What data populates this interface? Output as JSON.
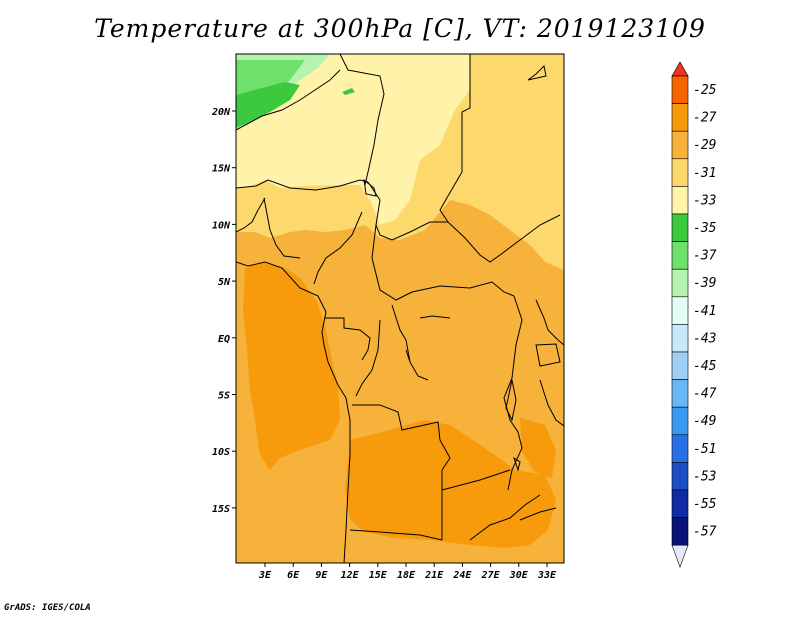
{
  "title": "Temperature at 300hPa [C], VT: 2019123109",
  "credit": "GrADS: IGES/COLA",
  "map": {
    "lat_labels": [
      "20N",
      "15N",
      "10N",
      "5N",
      "EQ",
      "5S",
      "10S",
      "15S"
    ],
    "lon_labels": [
      "3E",
      "6E",
      "9E",
      "12E",
      "15E",
      "18E",
      "21E",
      "24E",
      "27E",
      "30E",
      "33E"
    ]
  },
  "colorbar": {
    "labels": [
      "-25",
      "-27",
      "-29",
      "-31",
      "-33",
      "-35",
      "-37",
      "-39",
      "-41",
      "-43",
      "-45",
      "-47",
      "-49",
      "-51",
      "-53",
      "-55",
      "-57"
    ],
    "colors": {
      "top_triangle": "#f0321e",
      "boxes": [
        "#f56400",
        "#f79b0c",
        "#f6b23b",
        "#fdd96d",
        "#fff3a9",
        "#3cc93e",
        "#6fe06c",
        "#b6f3b0",
        "#e3fdf7",
        "#c9e9fb",
        "#9ecff7",
        "#6ab7f5",
        "#3a9af2",
        "#2a70e5",
        "#1d4fc4",
        "#0e2ba4"
      ],
      "bottom_triangle": "#e6e6fa",
      "bottom_box": "#09147a"
    }
  },
  "field_colors": {
    "warm": "#f79b0c",
    "mid": "#f6b23b",
    "cool": "#fdd96d",
    "cold": "#fff3a9",
    "green_light": "#b6f3b0",
    "green_mid": "#6fe06c",
    "green_dark": "#3cc93e"
  }
}
